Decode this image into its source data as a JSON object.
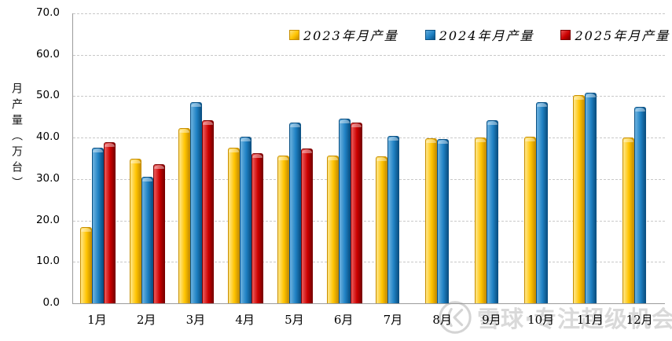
{
  "chart_data": {
    "type": "bar",
    "title": "",
    "categories": [
      "1月",
      "2月",
      "3月",
      "4月",
      "5月",
      "6月",
      "7月",
      "8月",
      "9月",
      "10月",
      "11月",
      "12月"
    ],
    "series": [
      {
        "name": "2023年月产量",
        "color": "#FFC400",
        "color_light": "#FFE27A",
        "color_dark": "#C88F00",
        "values": [
          18.3,
          34.7,
          42.2,
          37.3,
          35.4,
          35.5,
          35.3,
          39.7,
          39.8,
          40.0,
          50.1,
          39.8
        ]
      },
      {
        "name": "2024年月产量",
        "color": "#1F81C4",
        "color_light": "#63ACDC",
        "color_dark": "#0B5184",
        "values": [
          37.3,
          30.3,
          48.3,
          40.1,
          43.5,
          44.4,
          40.3,
          39.5,
          44.0,
          48.3,
          50.6,
          47.3
        ]
      },
      {
        "name": "2025年月产量",
        "color": "#CB0000",
        "color_light": "#E85050",
        "color_dark": "#7C0000",
        "values": [
          38.7,
          33.3,
          44.0,
          36.1,
          37.2,
          43.4,
          null,
          null,
          null,
          null,
          null,
          null
        ]
      }
    ],
    "xlabel": "",
    "ylabel": "月产量（万台）",
    "ylim": [
      0,
      70
    ],
    "ytick_step": 10,
    "ytick_labels": [
      "0.0",
      "10.0",
      "20.0",
      "30.0",
      "40.0",
      "50.0",
      "60.0",
      "70.0"
    ],
    "grid": "horizontal-dashed",
    "legend_position": "top"
  },
  "watermark": {
    "logo": "xueqiu-circle-k-logo",
    "text": "雪球·专注超级机会"
  },
  "colors": {
    "gridline": "#C9C9C9",
    "axis": "#9B9B9B",
    "tick_text": "#000000",
    "watermark": "#D9D9D9",
    "background": "#FFFFFF"
  }
}
